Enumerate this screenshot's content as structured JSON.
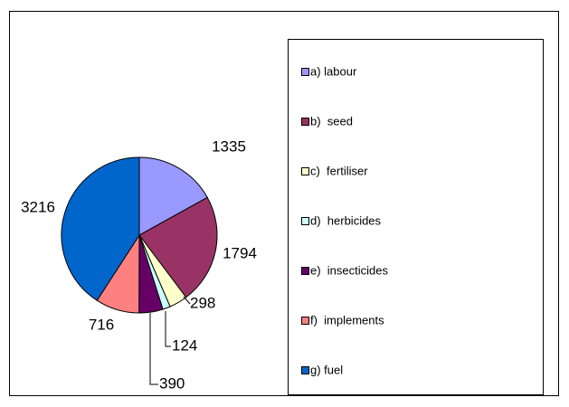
{
  "chart_data": {
    "type": "pie",
    "categories": [
      "a) labour",
      "b)  seed",
      "c)  fertiliser",
      "d)  herbicides",
      "e)  insecticides",
      "f)  implements",
      "g) fuel"
    ],
    "values": [
      1335,
      1794,
      298,
      124,
      390,
      716,
      3216
    ],
    "colors": [
      "#9999ff",
      "#993366",
      "#ffffcc",
      "#ccffff",
      "#660066",
      "#ff8080",
      "#0066cc"
    ],
    "legend": "right"
  }
}
